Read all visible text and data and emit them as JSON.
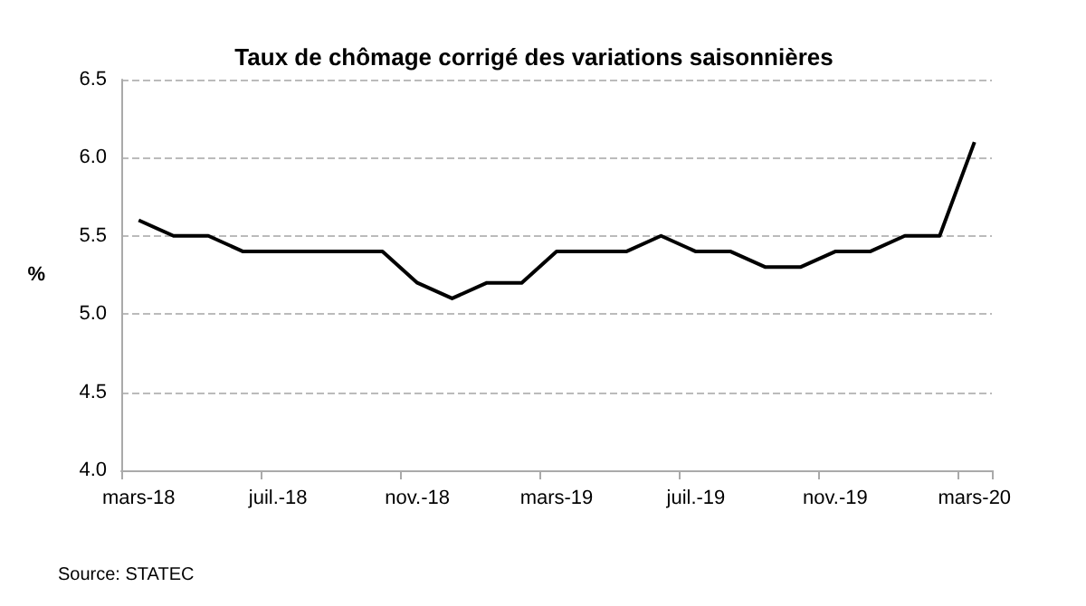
{
  "chart_data": {
    "type": "line",
    "title": "Taux de chômage corrigé des variations saisonnières",
    "ylabel": "%",
    "categories": [
      "mars-18",
      null,
      null,
      null,
      "juil.-18",
      null,
      null,
      null,
      "nov.-18",
      null,
      null,
      null,
      "mars-19",
      null,
      null,
      null,
      "juil.-19",
      null,
      null,
      null,
      "nov.-19",
      null,
      null,
      null,
      "mars-20"
    ],
    "series": [
      {
        "color": "#000000",
        "values": [
          5.6,
          5.5,
          5.5,
          5.4,
          5.4,
          5.4,
          5.4,
          5.4,
          5.2,
          5.1,
          5.2,
          5.2,
          5.4,
          5.4,
          5.4,
          5.5,
          5.4,
          5.4,
          5.3,
          5.3,
          5.4,
          5.4,
          5.5,
          5.5,
          6.1
        ]
      }
    ],
    "ylim": [
      4.0,
      6.5
    ],
    "yticks": [
      {
        "value": 4,
        "label": "4.0"
      },
      {
        "value": 4.5,
        "label": "4.5"
      },
      {
        "value": 5,
        "label": "5.0"
      },
      {
        "value": 5.5,
        "label": "5.5"
      },
      {
        "value": 6,
        "label": "6.0"
      },
      {
        "value": 6.5,
        "label": "6.5"
      }
    ],
    "grid": "y",
    "marker": "none",
    "line_style": "solid",
    "annotations": [
      "Source: STATEC"
    ]
  }
}
